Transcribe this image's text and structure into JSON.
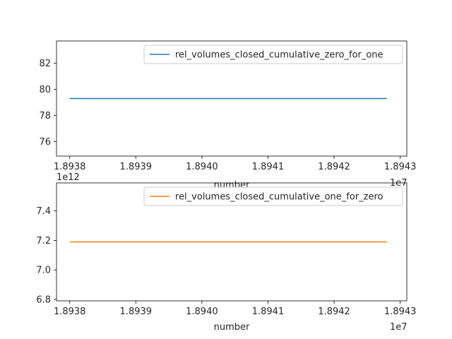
{
  "chart_data": [
    {
      "type": "line",
      "xlabel": "number",
      "x_offset_label": "1e7",
      "y_offset_label": "",
      "xlim": [
        18937.8,
        18943.1
      ],
      "ylim": [
        74.9,
        83.7
      ],
      "xticks": [
        "1.8938",
        "1.8939",
        "1.8940",
        "1.8941",
        "1.8942",
        "1.8943"
      ],
      "xtick_values": [
        18938,
        18939,
        18940,
        18941,
        18942,
        18943
      ],
      "yticks": [
        "76",
        "78",
        "80",
        "82"
      ],
      "ytick_values": [
        76,
        78,
        80,
        82
      ],
      "legend_position": "top-right",
      "grid": false,
      "series": [
        {
          "name": "rel_volumes_closed_cumulative_zero_for_one",
          "color": "#1f77b4",
          "x": [
            18938,
            18942.8
          ],
          "y": [
            79.3,
            79.3
          ]
        }
      ]
    },
    {
      "type": "line",
      "xlabel": "number",
      "x_offset_label": "1e7",
      "y_offset_label": "1e12",
      "xlim": [
        18937.8,
        18943.1
      ],
      "ylim": [
        6.79,
        7.59
      ],
      "xticks": [
        "1.8938",
        "1.8939",
        "1.8940",
        "1.8941",
        "1.8942",
        "1.8943"
      ],
      "xtick_values": [
        18938,
        18939,
        18940,
        18941,
        18942,
        18943
      ],
      "yticks": [
        "6.8",
        "7.0",
        "7.2",
        "7.4"
      ],
      "ytick_values": [
        6.8,
        7.0,
        7.2,
        7.4
      ],
      "legend_position": "top-right",
      "grid": false,
      "series": [
        {
          "name": "rel_volumes_closed_cumulative_one_for_zero",
          "color": "#ff7f0e",
          "x": [
            18938,
            18942.8
          ],
          "y": [
            7.19,
            7.19
          ]
        }
      ]
    }
  ]
}
